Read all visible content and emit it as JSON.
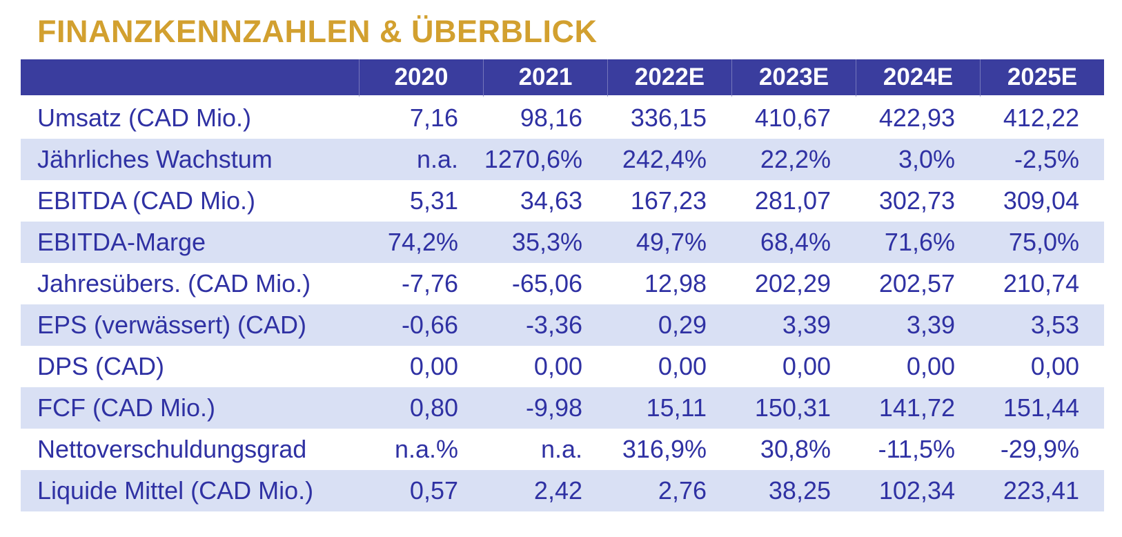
{
  "title": "FINANZKENNZAHLEN & ÜBERBLICK",
  "chart_data": {
    "type": "table",
    "title": "FINANZKENNZAHLEN & ÜBERBLICK",
    "columns": [
      "",
      "2020",
      "2021",
      "2022E",
      "2023E",
      "2024E",
      "2025E"
    ],
    "rows": [
      {
        "label": "Umsatz (CAD Mio.)",
        "values": [
          "7,16",
          "98,16",
          "336,15",
          "410,67",
          "422,93",
          "412,22"
        ]
      },
      {
        "label": "Jährliches Wachstum",
        "values": [
          "n.a.",
          "1270,6%",
          "242,4%",
          "22,2%",
          "3,0%",
          "-2,5%"
        ]
      },
      {
        "label": "EBITDA (CAD Mio.)",
        "values": [
          "5,31",
          "34,63",
          "167,23",
          "281,07",
          "302,73",
          "309,04"
        ]
      },
      {
        "label": "EBITDA-Marge",
        "values": [
          "74,2%",
          "35,3%",
          "49,7%",
          "68,4%",
          "71,6%",
          "75,0%"
        ]
      },
      {
        "label": "Jahresübers. (CAD Mio.)",
        "values": [
          "-7,76",
          "-65,06",
          "12,98",
          "202,29",
          "202,57",
          "210,74"
        ]
      },
      {
        "label": "EPS (verwässert) (CAD)",
        "values": [
          "-0,66",
          "-3,36",
          "0,29",
          "3,39",
          "3,39",
          "3,53"
        ]
      },
      {
        "label": "DPS (CAD)",
        "values": [
          "0,00",
          "0,00",
          "0,00",
          "0,00",
          "0,00",
          "0,00"
        ]
      },
      {
        "label": "FCF (CAD Mio.)",
        "values": [
          "0,80",
          "-9,98",
          "15,11",
          "150,31",
          "141,72",
          "151,44"
        ]
      },
      {
        "label": "Nettoverschuldungsgrad",
        "values": [
          "n.a.%",
          "n.a.",
          "316,9%",
          "30,8%",
          "-11,5%",
          "-29,9%"
        ]
      },
      {
        "label": "Liquide Mittel (CAD Mio.)",
        "values": [
          "0,57",
          "2,42",
          "2,76",
          "38,25",
          "102,34",
          "223,41"
        ]
      }
    ]
  },
  "colors": {
    "title_color": "#D2A02F",
    "header_bg": "#3A3D9E",
    "header_text": "#FFFFFF",
    "cell_text": "#2F31A3",
    "row_bg": "#FFFFFF",
    "row_alt_bg": "#D9E0F4"
  }
}
